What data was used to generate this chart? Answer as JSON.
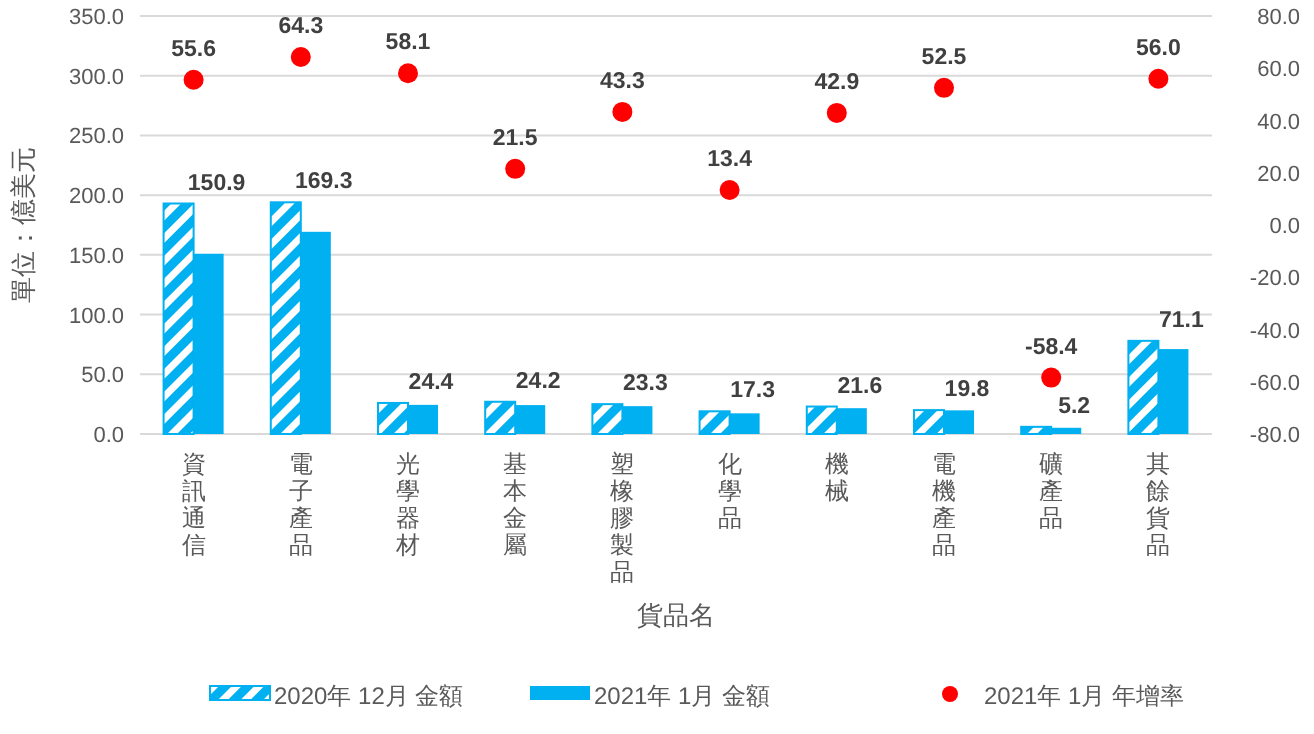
{
  "chart_data": {
    "type": "bar",
    "xlabel": "貨品名",
    "ylabel": "單位：億美元",
    "categories": [
      "資訊通信",
      "電子產品",
      "光學器材",
      "基本金屬",
      "塑橡膠製品",
      "化學品",
      "機械",
      "電機產品",
      "礦產品",
      "其餘貨品"
    ],
    "series": [
      {
        "name": "2020年 12月 金額",
        "color": "#00b0f0",
        "values": [
          193,
          194,
          26,
          27,
          25,
          19,
          23,
          20,
          6,
          78
        ]
      },
      {
        "name": "2021年 1月 金額",
        "color": "#00b0f0",
        "values": [
          150.9,
          169.3,
          24.4,
          24.2,
          23.3,
          17.3,
          21.6,
          19.8,
          5.2,
          71.1
        ],
        "value_labels": [
          "150.9",
          "169.3",
          "24.4",
          "24.2",
          "23.3",
          "17.3",
          "21.6",
          "19.8",
          "5.2",
          "71.1"
        ]
      },
      {
        "name": "2021年 1月 年增率",
        "type": "scatter",
        "axis": "y2",
        "color": "#ff0000",
        "marker": "circle",
        "values": [
          55.6,
          64.3,
          58.1,
          21.5,
          43.3,
          13.4,
          42.9,
          52.5,
          -58.4,
          56.0
        ],
        "value_labels": [
          "55.6",
          "64.3",
          "58.1",
          "21.5",
          "43.3",
          "13.4",
          "42.9",
          "52.5",
          "-58.4",
          "56.0"
        ]
      }
    ],
    "ylim": [
      0,
      350
    ],
    "yticks": [
      {
        "value": 0,
        "label": "0.0"
      },
      {
        "value": 50,
        "label": "50.0"
      },
      {
        "value": 100,
        "label": "100.0"
      },
      {
        "value": 150,
        "label": "150.0"
      },
      {
        "value": 200,
        "label": "200.0"
      },
      {
        "value": 250,
        "label": "250.0"
      },
      {
        "value": 300,
        "label": "300.0"
      },
      {
        "value": 350,
        "label": "350.0"
      }
    ],
    "y2lim": [
      -80,
      80
    ],
    "y2ticks": [
      {
        "value": -80,
        "label": "-80.0"
      },
      {
        "value": -60,
        "label": "-60.0"
      },
      {
        "value": -40,
        "label": "-40.0"
      },
      {
        "value": -20,
        "label": "-20.0"
      },
      {
        "value": 0,
        "label": "0.0"
      },
      {
        "value": 20,
        "label": "20.0"
      },
      {
        "value": 40,
        "label": "40.0"
      },
      {
        "value": 60,
        "label": "60.0"
      },
      {
        "value": 80,
        "label": "80.0"
      }
    ],
    "grid": "y",
    "legend": "bottom"
  }
}
